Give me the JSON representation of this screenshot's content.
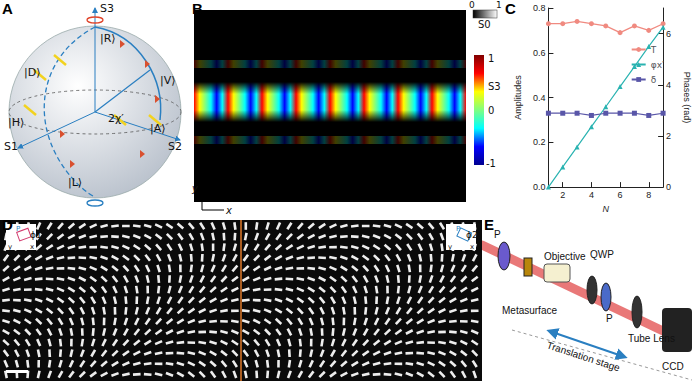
{
  "panels": {
    "A": {
      "label": "A",
      "texts": {
        "s3": "S3",
        "r": "|R⟩",
        "d": "|D⟩",
        "v": "|V⟩",
        "h": "|H⟩",
        "s1": "S1",
        "s2": "S2",
        "a": "|A⟩",
        "l": "|L⟩",
        "chi": "2χ′"
      }
    },
    "B": {
      "label": "B",
      "s0_title": "S0",
      "s0_ticks": [
        0,
        1
      ],
      "s3_title": "S3",
      "s3_ticks": [
        1,
        0,
        -1
      ],
      "x": "x",
      "y": "y"
    },
    "C": {
      "label": "C"
    },
    "D": {
      "label": "D",
      "phi1": "ϕ1",
      "phi2": "ϕ2",
      "x": "x",
      "y": "y",
      "p": "P"
    },
    "E": {
      "label": "E",
      "components": [
        "P",
        "Metasurface",
        "Objective",
        "QWP",
        "P",
        "Tube Lens",
        "CCD"
      ],
      "stage": "Translation stage"
    }
  },
  "chart_data": {
    "type": "line",
    "x_label": "N",
    "y_label": "Amplitudes",
    "y2_label": "Phases (rad)",
    "x": [
      1,
      2,
      3,
      4,
      5,
      6,
      7,
      8,
      9
    ],
    "xlim": [
      1,
      9
    ],
    "xticks": [
      2,
      4,
      6,
      8
    ],
    "ylim": [
      0,
      0.8
    ],
    "yticks": [
      {
        "value": 0,
        "label": "0.0"
      },
      {
        "value": 0.2,
        "label": "0.2"
      },
      {
        "value": 0.4,
        "label": "0.4"
      },
      {
        "value": 0.6,
        "label": "0.6"
      },
      {
        "value": 0.8,
        "label": "0.8"
      }
    ],
    "y2lim": [
      0,
      7
    ],
    "y2ticks": [
      0,
      2,
      4,
      6
    ],
    "legend": "right",
    "grid": false,
    "series": [
      {
        "name": "T",
        "color": "#f08a80",
        "marker": "circle",
        "line_style": "solid",
        "values": [
          0.73,
          0.73,
          0.74,
          0.73,
          0.72,
          0.69,
          0.72,
          0.7,
          0.73
        ]
      },
      {
        "name": "φx′",
        "color": "#2ab3b1",
        "marker": "triangle",
        "line_style": "solid",
        "axis": "y2",
        "values": [
          0.0,
          0.79,
          1.57,
          2.36,
          3.14,
          3.93,
          4.71,
          5.5,
          6.25
        ]
      },
      {
        "name": "δ",
        "color": "#5956a8",
        "marker": "rect",
        "line_style": "solid",
        "values": [
          0.33,
          0.33,
          0.33,
          0.32,
          0.33,
          0.33,
          0.33,
          0.32,
          0.33
        ]
      }
    ]
  }
}
